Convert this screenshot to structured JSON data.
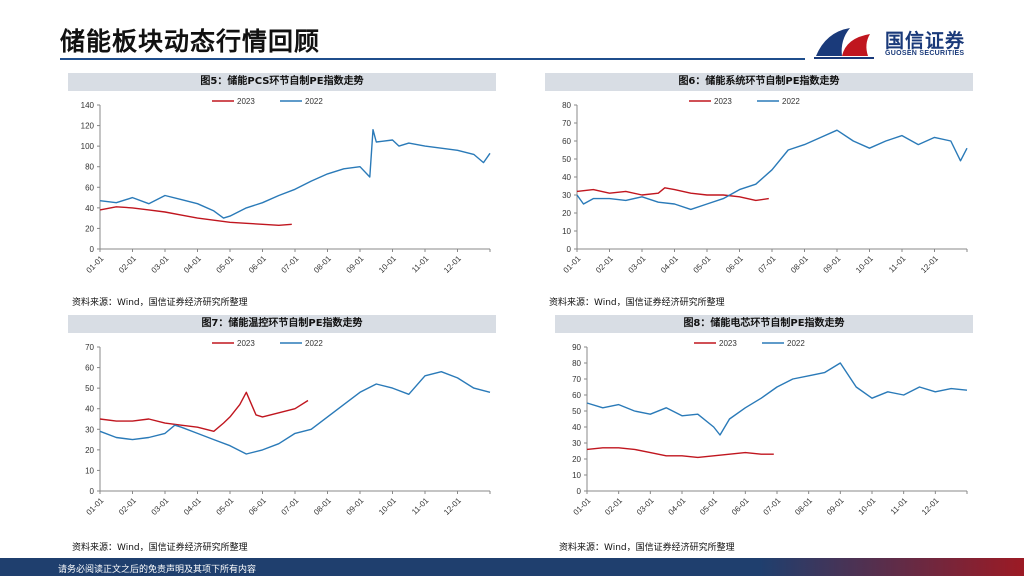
{
  "page": {
    "title": "储能板块动态行情回顾",
    "logo_text": "国信证券",
    "logo_sub": "GUOSEN SECURITIES",
    "footer": "请务必阅读正文之后的免责声明及其项下所有内容"
  },
  "colors": {
    "series_2023": "#c0161f",
    "series_2022": "#2a7ab8",
    "brand": "#1a3a7a"
  },
  "panels": [
    {
      "title": "图5：储能PCS环节自制PE指数走势",
      "source": "资料来源：Wind，国信证券经济研究所整理"
    },
    {
      "title": "图6：储能系统环节自制PE指数走势",
      "source": "资料来源：Wind，国信证券经济研究所整理"
    },
    {
      "title": "图7：储能温控环节自制PE指数走势",
      "source": "资料来源：Wind，国信证券经济研究所整理"
    },
    {
      "title": "图8：储能电芯环节自制PE指数走势",
      "source": "资料来源：Wind，国信证券经济研究所整理"
    }
  ],
  "chart_data": [
    {
      "type": "line",
      "title": "图5：储能PCS环节自制PE指数走势",
      "ylim": [
        0,
        140
      ],
      "yticks": [
        0,
        20,
        40,
        60,
        80,
        100,
        120,
        140
      ],
      "categories": [
        "01-01",
        "02-01",
        "03-01",
        "04-01",
        "05-01",
        "06-01",
        "07-01",
        "08-01",
        "09-01",
        "10-01",
        "11-01",
        "12-01"
      ],
      "legend": "top-center",
      "series": [
        {
          "name": "2023",
          "color": "#c0161f",
          "x": [
            0,
            0.5,
            1,
            1.5,
            2,
            2.5,
            3,
            3.5,
            4,
            4.5,
            5,
            5.5,
            5.9
          ],
          "values": [
            38,
            41,
            40,
            38,
            36,
            33,
            30,
            28,
            26,
            25,
            24,
            23,
            24
          ]
        },
        {
          "name": "2022",
          "color": "#2a7ab8",
          "x": [
            0,
            0.5,
            1,
            1.5,
            2,
            2.5,
            3,
            3.5,
            3.8,
            4,
            4.5,
            5,
            5.5,
            6,
            6.5,
            7,
            7.5,
            8,
            8.3,
            8.4,
            8.5,
            9,
            9.2,
            9.5,
            10,
            10.5,
            11,
            11.5,
            11.8,
            12
          ],
          "values": [
            47,
            45,
            50,
            44,
            52,
            48,
            44,
            37,
            30,
            32,
            40,
            45,
            52,
            58,
            66,
            73,
            78,
            80,
            70,
            116,
            104,
            106,
            100,
            103,
            100,
            98,
            96,
            92,
            84,
            93
          ]
        }
      ]
    },
    {
      "type": "line",
      "title": "图6：储能系统环节自制PE指数走势",
      "ylim": [
        0,
        80
      ],
      "yticks": [
        0,
        10,
        20,
        30,
        40,
        50,
        60,
        70,
        80
      ],
      "categories": [
        "01-01",
        "02-01",
        "03-01",
        "04-01",
        "05-01",
        "06-01",
        "07-01",
        "08-01",
        "09-01",
        "10-01",
        "11-01",
        "12-01"
      ],
      "legend": "top-center",
      "series": [
        {
          "name": "2023",
          "color": "#c0161f",
          "x": [
            0,
            0.5,
            1,
            1.5,
            2,
            2.5,
            2.7,
            3,
            3.5,
            4,
            4.5,
            5,
            5.5,
            5.9
          ],
          "values": [
            32,
            33,
            31,
            32,
            30,
            31,
            34,
            33,
            31,
            30,
            30,
            29,
            27,
            28
          ]
        },
        {
          "name": "2022",
          "color": "#2a7ab8",
          "x": [
            0,
            0.2,
            0.5,
            1,
            1.5,
            2,
            2.5,
            3,
            3.5,
            4,
            4.5,
            5,
            5.5,
            6,
            6.5,
            7,
            7.5,
            8,
            8.5,
            9,
            9.5,
            10,
            10.5,
            11,
            11.5,
            11.8,
            12
          ],
          "values": [
            30,
            25,
            28,
            28,
            27,
            29,
            26,
            25,
            22,
            25,
            28,
            33,
            36,
            44,
            55,
            58,
            62,
            66,
            60,
            56,
            60,
            63,
            58,
            62,
            60,
            49,
            56
          ]
        }
      ]
    },
    {
      "type": "line",
      "title": "图7：储能温控环节自制PE指数走势",
      "ylim": [
        0,
        70
      ],
      "yticks": [
        0,
        10,
        20,
        30,
        40,
        50,
        60,
        70
      ],
      "categories": [
        "01-01",
        "02-01",
        "03-01",
        "04-01",
        "05-01",
        "06-01",
        "07-01",
        "08-01",
        "09-01",
        "10-01",
        "11-01",
        "12-01"
      ],
      "legend": "top-center",
      "series": [
        {
          "name": "2023",
          "color": "#c0161f",
          "x": [
            0,
            0.5,
            1,
            1.5,
            2,
            2.5,
            3,
            3.5,
            3.8,
            4,
            4.3,
            4.5,
            4.8,
            5,
            5.5,
            6,
            6.4
          ],
          "values": [
            35,
            34,
            34,
            35,
            33,
            32,
            31,
            29,
            33,
            36,
            42,
            48,
            37,
            36,
            38,
            40,
            44
          ]
        },
        {
          "name": "2022",
          "color": "#2a7ab8",
          "x": [
            0,
            0.5,
            1,
            1.5,
            2,
            2.3,
            2.5,
            3,
            3.5,
            4,
            4.5,
            5,
            5.5,
            6,
            6.5,
            7,
            7.5,
            8,
            8.5,
            9,
            9.5,
            10,
            10.5,
            11,
            11.5,
            12
          ],
          "values": [
            29,
            26,
            25,
            26,
            28,
            32,
            31,
            28,
            25,
            22,
            18,
            20,
            23,
            28,
            30,
            36,
            42,
            48,
            52,
            50,
            47,
            56,
            58,
            55,
            50,
            48
          ]
        }
      ]
    },
    {
      "type": "line",
      "title": "图8：储能电芯环节自制PE指数走势",
      "ylim": [
        0,
        90
      ],
      "yticks": [
        0,
        10,
        20,
        30,
        40,
        50,
        60,
        70,
        80,
        90
      ],
      "categories": [
        "01-01",
        "02-01",
        "03-01",
        "04-01",
        "05-01",
        "06-01",
        "07-01",
        "08-01",
        "09-01",
        "10-01",
        "11-01",
        "12-01"
      ],
      "legend": "top-center",
      "series": [
        {
          "name": "2023",
          "color": "#c0161f",
          "x": [
            0,
            0.5,
            1,
            1.5,
            2,
            2.5,
            3,
            3.5,
            4,
            4.5,
            5,
            5.5,
            5.9
          ],
          "values": [
            26,
            27,
            27,
            26,
            24,
            22,
            22,
            21,
            22,
            23,
            24,
            23,
            23
          ]
        },
        {
          "name": "2022",
          "color": "#2a7ab8",
          "x": [
            0,
            0.5,
            1,
            1.5,
            2,
            2.5,
            3,
            3.5,
            4,
            4.2,
            4.5,
            5,
            5.5,
            6,
            6.5,
            7,
            7.5,
            8,
            8.5,
            9,
            9.5,
            10,
            10.5,
            11,
            11.5,
            12
          ],
          "values": [
            55,
            52,
            54,
            50,
            48,
            52,
            47,
            48,
            40,
            35,
            45,
            52,
            58,
            65,
            70,
            72,
            74,
            80,
            65,
            58,
            62,
            60,
            65,
            62,
            64,
            63
          ]
        }
      ]
    }
  ]
}
